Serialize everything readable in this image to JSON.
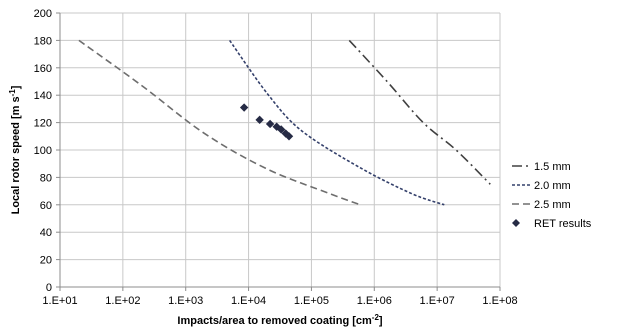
{
  "chart_data": {
    "type": "line",
    "title": "",
    "xlabel": "Impacts/area to removed coating [cm",
    "xlabel_sup": "-2",
    "xlabel_end": "]",
    "ylabel": "Local rotor speed [m s",
    "ylabel_sup": "-1",
    "ylabel_end": "]",
    "x_scale": "log",
    "xlim": [
      10,
      100000000
    ],
    "ylim": [
      0,
      200
    ],
    "x_ticks": [
      10,
      100,
      1000,
      10000,
      100000,
      1000000,
      10000000,
      100000000
    ],
    "x_tick_labels": [
      "1.E+01",
      "1.E+02",
      "1.E+03",
      "1.E+04",
      "1.E+05",
      "1.E+06",
      "1.E+07",
      "1.E+08"
    ],
    "y_ticks": [
      0,
      20,
      40,
      60,
      80,
      100,
      120,
      140,
      160,
      180,
      200
    ],
    "y_tick_labels": [
      "0",
      "20",
      "40",
      "60",
      "80",
      "100",
      "120",
      "140",
      "160",
      "180",
      "200"
    ],
    "grid": true,
    "legend_position": "right",
    "series": [
      {
        "name": "1.5 mm",
        "style": "dash-dot",
        "color": "#404040",
        "x": [
          400000,
          1600000,
          6000000,
          20000000,
          70000000
        ],
        "y": [
          180,
          150,
          120,
          100,
          75
        ]
      },
      {
        "name": "2.0 mm",
        "style": "short-dash",
        "color": "#34406b",
        "x": [
          5000,
          20000,
          70000,
          600000,
          4000000,
          13000000
        ],
        "y": [
          180,
          141,
          114,
          87,
          68,
          60
        ]
      },
      {
        "name": "2.5 mm",
        "style": "long-dash",
        "color": "#6e6e6e",
        "x": [
          20,
          200,
          2000,
          20000,
          200000,
          600000
        ],
        "y": [
          180,
          147,
          112,
          86,
          68,
          60
        ]
      },
      {
        "name": "RET results",
        "style": "markers",
        "color": "#262b45",
        "x": [
          8500,
          15000,
          22000,
          28000,
          33000,
          39000,
          44000
        ],
        "y": [
          131,
          122,
          119,
          117,
          115,
          112,
          110
        ]
      }
    ]
  }
}
